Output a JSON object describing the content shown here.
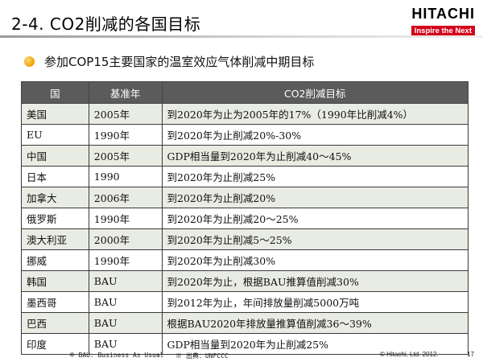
{
  "slide": {
    "title": "2-4. CO2削减的各国目标",
    "bullet": "参加COP15主要国家的温室效应气体削减中期目标"
  },
  "logo": {
    "name": "HITACHI",
    "tagline": "Inspire the Next",
    "brand_color": "#d4001a"
  },
  "table": {
    "headers": [
      "国",
      "基准年",
      "CO2削减目标"
    ],
    "rows": [
      [
        "美国",
        "2005年",
        "到2020年为止为2005年的17%（1990年比削减4%）"
      ],
      [
        "EU",
        "1990年",
        "到2020年为止削减20%-30%"
      ],
      [
        "中国",
        "2005年",
        "GDP相当量到2020年为止削减40～45%"
      ],
      [
        "日本",
        "1990",
        "到2020年为止削减25%"
      ],
      [
        "加拿大",
        "2006年",
        "到2020年为止削减20%"
      ],
      [
        "俄罗斯",
        "1990年",
        "到2020年为止削减20～25%"
      ],
      [
        "澳大利亚",
        "2000年",
        "到2020年为止削减5～25%"
      ],
      [
        "挪威",
        "1990年",
        "到2020年为止削减30%"
      ],
      [
        "韩国",
        "BAU",
        "到2020年为止，根据BAU推算值削减30%"
      ],
      [
        "墨西哥",
        "BAU",
        "到2012年为止，年间排放量削减5000万吨"
      ],
      [
        "巴西",
        "BAU",
        "根据BAU2020年排放量推算值削减36～39%"
      ],
      [
        "印度",
        "BAU",
        "GDP相当量到2020年为止削减25%"
      ]
    ]
  },
  "footer": {
    "note1": "※ BAU: Business As Usual",
    "note2": "※ 出典：UNFCCC",
    "copyright": "© Hitachi, Ltd. 2012.",
    "page_number": "17"
  }
}
